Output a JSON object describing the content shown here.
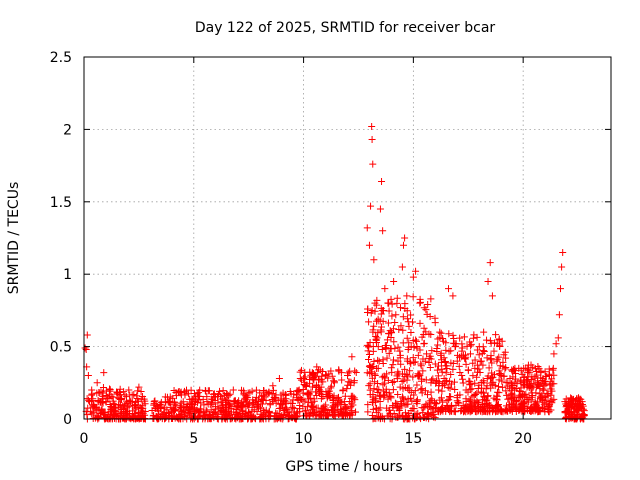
{
  "chart_data": {
    "type": "scatter",
    "title": "Day 122 of 2025, SRMTID for receiver bcar",
    "xlabel": "GPS time / hours",
    "ylabel": "SRMTID / TECUs",
    "xlim": [
      0,
      24
    ],
    "ylim": [
      0,
      2.5
    ],
    "xticks": [
      0,
      5,
      10,
      15,
      20
    ],
    "yticks": [
      0,
      0.5,
      1,
      1.5,
      2,
      2.5
    ],
    "x_tick_labels": [
      "0",
      "5",
      "10",
      "15",
      "20"
    ],
    "y_tick_labels": [
      "0",
      "0.5",
      "1",
      "1.5",
      "2",
      "2.5"
    ],
    "grid": true,
    "marker": "+",
    "series": [
      {
        "name": "SRMTID",
        "color": "#ff0000",
        "points": [
          [
            0.05,
            0.49
          ],
          [
            0.1,
            0.48
          ],
          [
            0.15,
            0.58
          ],
          [
            0.12,
            0.36
          ],
          [
            0.2,
            0.3
          ],
          [
            0.25,
            0.12
          ],
          [
            0.3,
            0.05
          ],
          [
            0.35,
            0.2
          ],
          [
            0.4,
            0.14
          ],
          [
            0.5,
            0.08
          ],
          [
            0.6,
            0.25
          ],
          [
            0.7,
            0.18
          ],
          [
            0.8,
            0.06
          ],
          [
            0.9,
            0.32
          ],
          [
            1.0,
            0.12
          ],
          [
            1.2,
            0.05
          ],
          [
            1.4,
            0.1
          ],
          [
            1.6,
            0.14
          ],
          [
            1.8,
            0.07
          ],
          [
            2.0,
            0.11
          ],
          [
            2.2,
            0.09
          ],
          [
            2.4,
            0.16
          ],
          [
            2.5,
            0.22
          ],
          [
            2.6,
            0.19
          ],
          [
            2.7,
            0.04
          ],
          [
            3.2,
            0.12
          ],
          [
            3.5,
            0.08
          ],
          [
            3.8,
            0.15
          ],
          [
            4.1,
            0.06
          ],
          [
            4.4,
            0.18
          ],
          [
            4.7,
            0.1
          ],
          [
            5.0,
            0.14
          ],
          [
            5.3,
            0.07
          ],
          [
            5.6,
            0.12
          ],
          [
            5.9,
            0.17
          ],
          [
            6.2,
            0.05
          ],
          [
            6.5,
            0.13
          ],
          [
            6.8,
            0.2
          ],
          [
            7.1,
            0.08
          ],
          [
            7.4,
            0.15
          ],
          [
            7.7,
            0.11
          ],
          [
            8.0,
            0.18
          ],
          [
            8.3,
            0.06
          ],
          [
            8.6,
            0.23
          ],
          [
            8.9,
            0.28
          ],
          [
            9.2,
            0.14
          ],
          [
            9.5,
            0.08
          ],
          [
            9.8,
            0.2
          ],
          [
            10.0,
            0.28
          ],
          [
            10.2,
            0.18
          ],
          [
            10.4,
            0.32
          ],
          [
            10.6,
            0.36
          ],
          [
            10.8,
            0.22
          ],
          [
            11.0,
            0.3
          ],
          [
            11.2,
            0.15
          ],
          [
            11.4,
            0.26
          ],
          [
            11.6,
            0.34
          ],
          [
            11.8,
            0.2
          ],
          [
            12.0,
            0.3
          ],
          [
            12.2,
            0.43
          ],
          [
            12.3,
            0.25
          ],
          [
            12.9,
            1.32
          ],
          [
            13.0,
            1.2
          ],
          [
            13.05,
            1.47
          ],
          [
            13.1,
            2.02
          ],
          [
            13.12,
            1.93
          ],
          [
            13.15,
            1.76
          ],
          [
            13.2,
            1.1
          ],
          [
            13.25,
            0.8
          ],
          [
            13.3,
            0.55
          ],
          [
            13.4,
            0.35
          ],
          [
            13.5,
            1.45
          ],
          [
            13.55,
            1.64
          ],
          [
            13.6,
            1.3
          ],
          [
            13.7,
            0.9
          ],
          [
            13.8,
            0.42
          ],
          [
            13.9,
            0.18
          ],
          [
            14.0,
            0.6
          ],
          [
            14.1,
            0.95
          ],
          [
            14.2,
            0.72
          ],
          [
            14.3,
            0.4
          ],
          [
            14.4,
            0.22
          ],
          [
            14.5,
            1.05
          ],
          [
            14.55,
            1.2
          ],
          [
            14.6,
            1.25
          ],
          [
            14.7,
            0.85
          ],
          [
            14.8,
            0.64
          ],
          [
            14.9,
            0.5
          ],
          [
            15.0,
            0.98
          ],
          [
            15.1,
            1.02
          ],
          [
            15.2,
            0.3
          ],
          [
            15.4,
            0.18
          ],
          [
            15.6,
            0.45
          ],
          [
            15.8,
            0.25
          ],
          [
            16.0,
            0.38
          ],
          [
            16.2,
            0.6
          ],
          [
            16.4,
            0.28
          ],
          [
            16.6,
            0.9
          ],
          [
            16.8,
            0.85
          ],
          [
            16.9,
            0.5
          ],
          [
            17.0,
            0.4
          ],
          [
            17.2,
            0.3
          ],
          [
            17.4,
            0.2
          ],
          [
            17.6,
            0.45
          ],
          [
            17.8,
            0.35
          ],
          [
            18.0,
            0.5
          ],
          [
            18.2,
            0.6
          ],
          [
            18.4,
            0.95
          ],
          [
            18.5,
            1.08
          ],
          [
            18.6,
            0.85
          ],
          [
            18.8,
            0.4
          ],
          [
            19.0,
            0.3
          ],
          [
            19.2,
            0.42
          ],
          [
            19.4,
            0.28
          ],
          [
            19.6,
            0.2
          ],
          [
            19.8,
            0.35
          ],
          [
            20.0,
            0.25
          ],
          [
            20.2,
            0.32
          ],
          [
            20.4,
            0.18
          ],
          [
            20.6,
            0.22
          ],
          [
            20.8,
            0.15
          ],
          [
            21.0,
            0.26
          ],
          [
            21.2,
            0.3
          ],
          [
            21.4,
            0.45
          ],
          [
            21.5,
            0.52
          ],
          [
            21.6,
            0.56
          ],
          [
            21.65,
            0.72
          ],
          [
            21.7,
            0.9
          ],
          [
            21.75,
            1.05
          ],
          [
            21.8,
            1.15
          ],
          [
            21.9,
            0.12
          ],
          [
            22.1,
            0.08
          ],
          [
            22.3,
            0.05
          ],
          [
            22.5,
            0.14
          ],
          [
            22.7,
            0.1
          ]
        ],
        "generated_noise": [
          {
            "x_start": 0.1,
            "x_end": 2.8,
            "y_min": 0.0,
            "y_max": 0.22,
            "count": 220
          },
          {
            "x_start": 3.1,
            "x_end": 9.8,
            "y_min": 0.0,
            "y_max": 0.2,
            "count": 520
          },
          {
            "x_start": 9.8,
            "x_end": 12.4,
            "y_min": 0.02,
            "y_max": 0.34,
            "count": 230
          },
          {
            "x_start": 12.9,
            "x_end": 16.0,
            "y_min": 0.0,
            "y_max": 0.85,
            "count": 360
          },
          {
            "x_start": 16.0,
            "x_end": 19.2,
            "y_min": 0.05,
            "y_max": 0.6,
            "count": 330
          },
          {
            "x_start": 19.2,
            "x_end": 21.4,
            "y_min": 0.05,
            "y_max": 0.38,
            "count": 240
          },
          {
            "x_start": 21.9,
            "x_end": 22.8,
            "y_min": 0.0,
            "y_max": 0.15,
            "count": 110
          }
        ]
      }
    ]
  }
}
